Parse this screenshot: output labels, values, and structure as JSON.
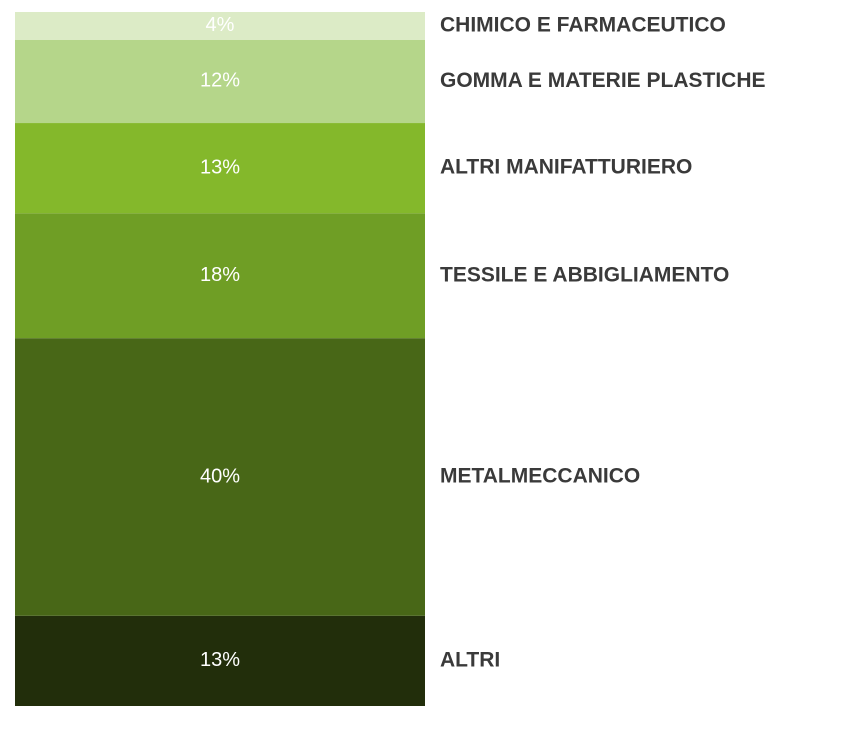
{
  "chart_data": {
    "type": "stacked_bar",
    "series": [
      {
        "name": "ALTRI",
        "color": "#222e0b",
        "values": [
          13
        ],
        "value_labels": [
          "13%"
        ]
      },
      {
        "name": "METALMECCANICO",
        "color": "#486717",
        "values": [
          40
        ],
        "value_labels": [
          "40%"
        ]
      },
      {
        "name": "TESSILE E ABBIGLIAMENTO",
        "color": "#6f9e25",
        "values": [
          18
        ],
        "value_labels": [
          "18%"
        ]
      },
      {
        "name": "ALTRI MANIFATTURIERO",
        "color": "#84b82b",
        "values": [
          13
        ],
        "value_labels": [
          "13%"
        ]
      },
      {
        "name": "GOMMA E MATERIE PLASTICHE",
        "color": "#b5d68a",
        "values": [
          12
        ],
        "value_labels": [
          "12%"
        ]
      },
      {
        "name": "CHIMICO E FARMACEUTICO",
        "color": "#dcebc6",
        "values": [
          4
        ],
        "value_labels": [
          "4%"
        ]
      }
    ]
  }
}
